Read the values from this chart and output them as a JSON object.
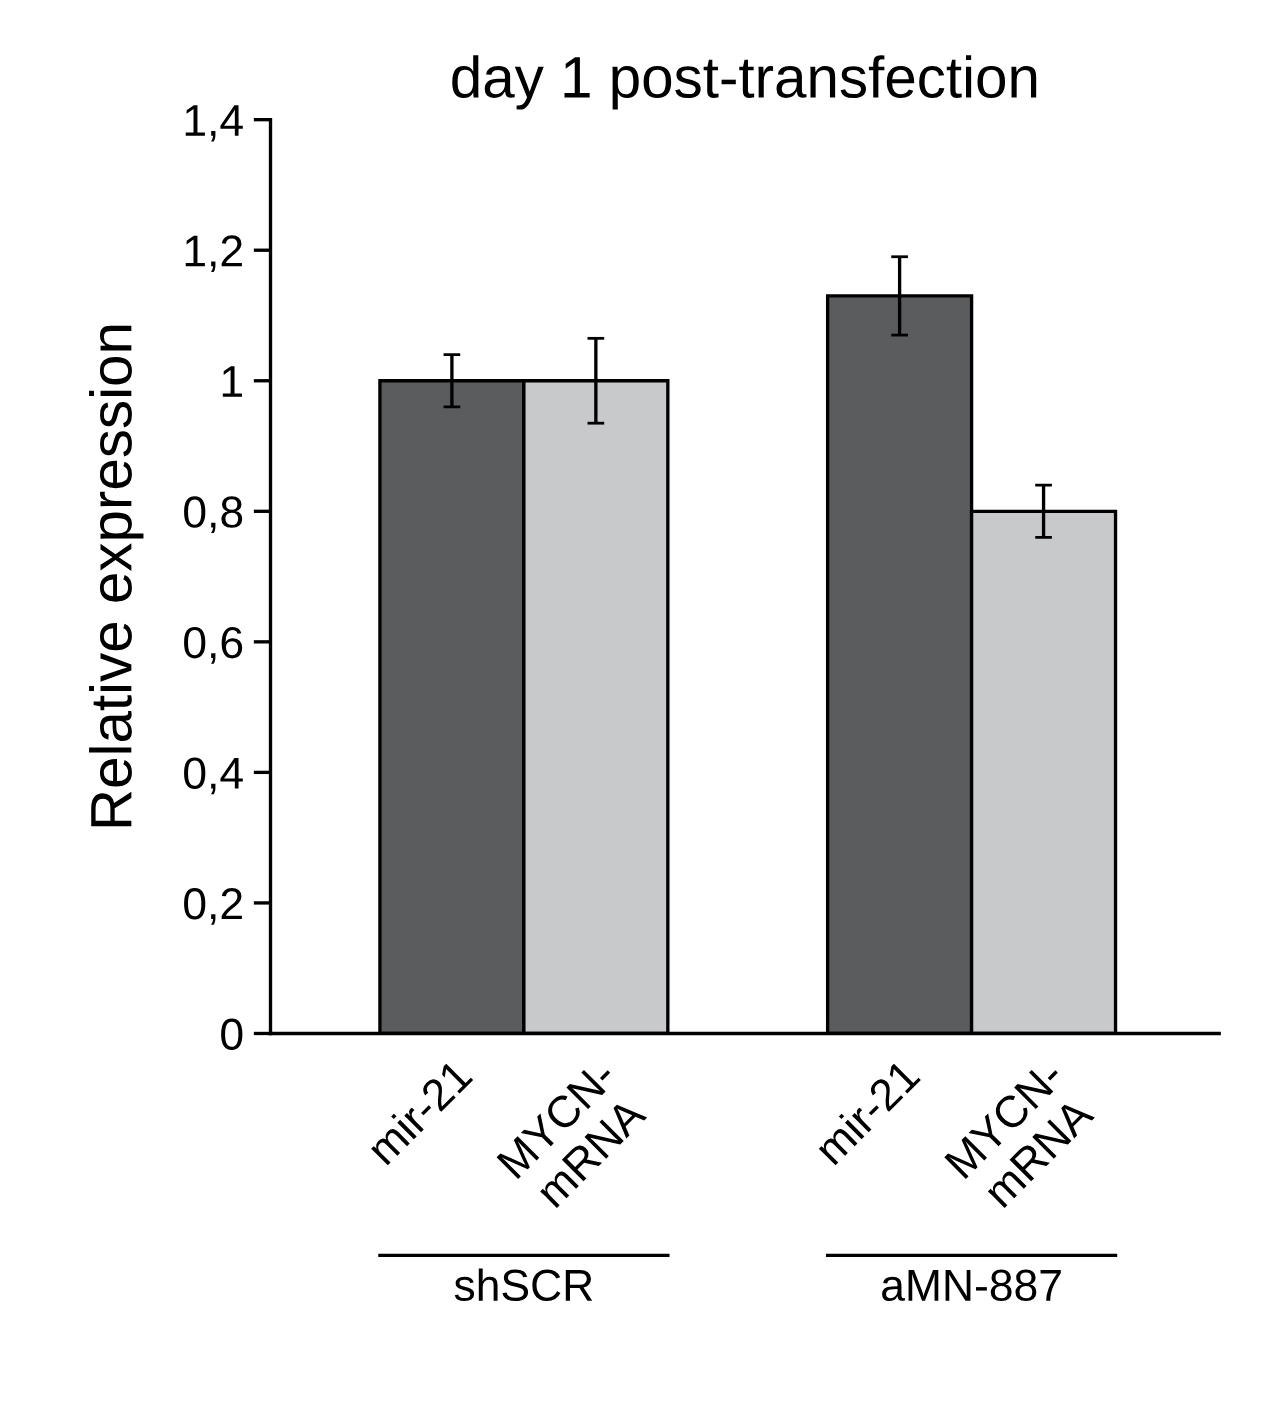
{
  "chart_data": {
    "type": "bar",
    "title": "day 1 post-transfection",
    "ylabel": "Relative expression",
    "categories": [
      "mir-21",
      "MYCN-\nmRNA",
      "mir-21",
      "MYCN-\nmRNA"
    ],
    "values": [
      1.0,
      1.0,
      1.13,
      0.8
    ],
    "colors": [
      "#5b5c5e",
      "#c8c9cb",
      "#5b5c5e",
      "#c8c9cb"
    ],
    "errors": [
      0.04,
      0.065,
      0.06,
      0.04
    ],
    "ylim": [
      0,
      1.4
    ],
    "yticks": [
      0,
      {
        "value": 0.2,
        "label": "0,2"
      },
      {
        "value": 0.4,
        "label": "0,4"
      },
      {
        "value": 0.6,
        "label": "0,6"
      },
      {
        "value": 0.8,
        "label": "0,8"
      },
      1,
      {
        "value": 1.2,
        "label": "1,2"
      },
      {
        "value": 1.4,
        "label": "1,4"
      }
    ],
    "annotations": [
      "shSCR",
      "aMN-887"
    ],
    "grid": false,
    "legend": false
  }
}
